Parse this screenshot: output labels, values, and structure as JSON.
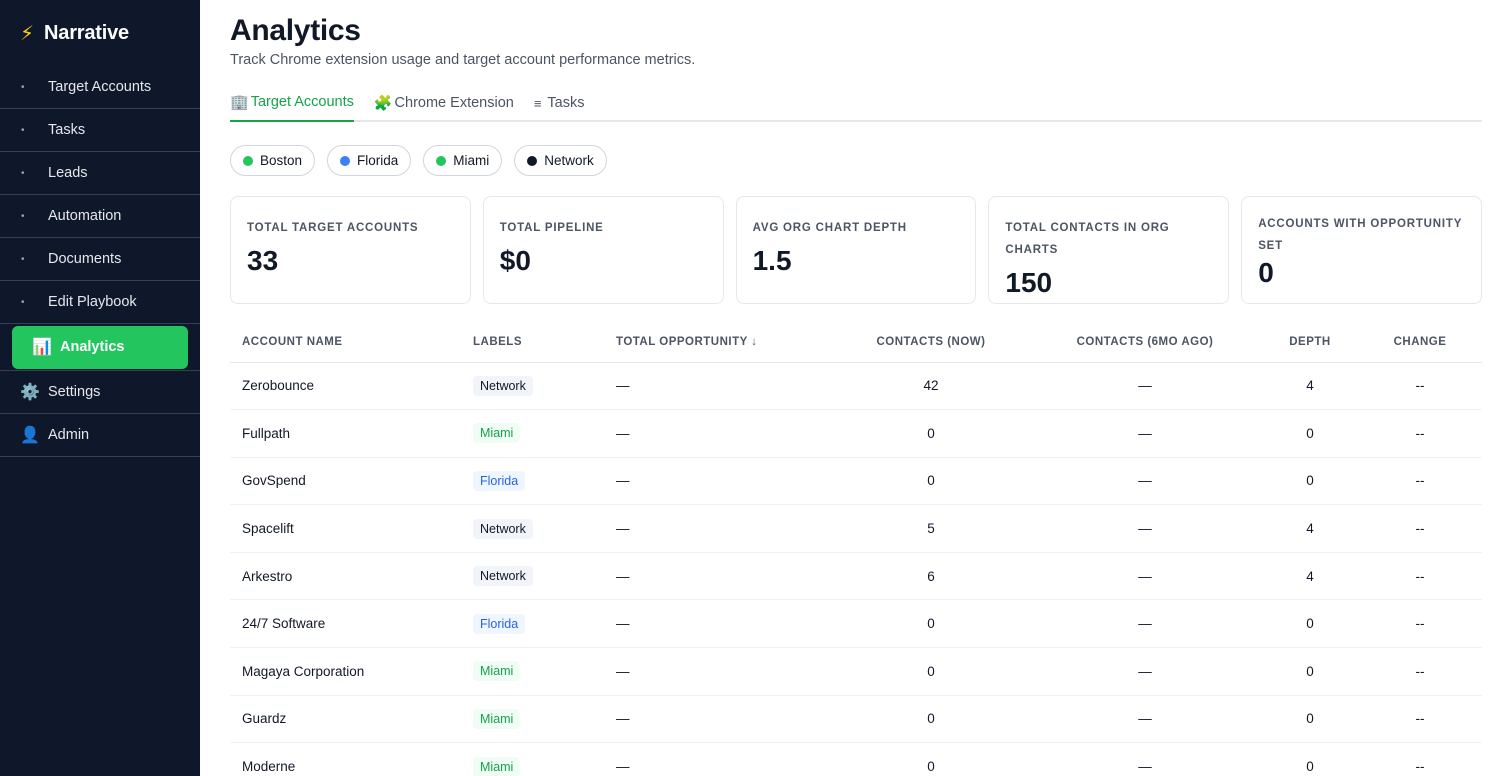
{
  "brand": {
    "icon": "⚡",
    "name": "Narrative"
  },
  "sidebar": {
    "items": [
      {
        "label": "Target Accounts",
        "marker": "•"
      },
      {
        "label": "Tasks",
        "marker": "•"
      },
      {
        "label": "Leads",
        "marker": "•"
      },
      {
        "label": "Automation",
        "marker": "•"
      },
      {
        "label": "Documents",
        "marker": "•"
      },
      {
        "label": "Edit Playbook",
        "marker": "•"
      },
      {
        "label": "Analytics",
        "marker": "📊",
        "active": true
      },
      {
        "label": "Settings",
        "marker": "⚙️"
      },
      {
        "label": "Admin",
        "marker": "👤"
      }
    ]
  },
  "header": {
    "title": "Analytics",
    "subtitle": "Track Chrome extension usage and target account performance metrics."
  },
  "tabs": [
    {
      "icon": "🏢",
      "label": "Target Accounts",
      "active": true
    },
    {
      "icon": "🧩",
      "label": "Chrome Extension"
    },
    {
      "icon": "≡",
      "label": "Tasks"
    }
  ],
  "filters": [
    {
      "label": "Boston",
      "color": "#22c55e"
    },
    {
      "label": "Florida",
      "color": "#3b82f6"
    },
    {
      "label": "Miami",
      "color": "#22c55e"
    },
    {
      "label": "Network",
      "color": "#111827"
    }
  ],
  "stats": [
    {
      "label": "Total Target Accounts",
      "value": "33"
    },
    {
      "label": "Total Pipeline",
      "value": "$0"
    },
    {
      "label": "Avg Org Chart Depth",
      "value": "1.5"
    },
    {
      "label": "Total Contacts in Org Charts",
      "value": "150"
    },
    {
      "label": "Accounts with Opportunity Set",
      "value": "0"
    }
  ],
  "table": {
    "columns": [
      "Account Name",
      "Labels",
      "Total Opportunity ↓",
      "Contacts (Now)",
      "Contacts (6mo Ago)",
      "Depth",
      "Change"
    ],
    "rows": [
      {
        "name": "Zerobounce",
        "label": "Network",
        "opportunity": "—",
        "contacts_now": "42",
        "contacts_6mo": "—",
        "depth": "4",
        "change": "--"
      },
      {
        "name": "Fullpath",
        "label": "Miami",
        "opportunity": "—",
        "contacts_now": "0",
        "contacts_6mo": "—",
        "depth": "0",
        "change": "--"
      },
      {
        "name": "GovSpend",
        "label": "Florida",
        "opportunity": "—",
        "contacts_now": "0",
        "contacts_6mo": "—",
        "depth": "0",
        "change": "--"
      },
      {
        "name": "Spacelift",
        "label": "Network",
        "opportunity": "—",
        "contacts_now": "5",
        "contacts_6mo": "—",
        "depth": "4",
        "change": "--"
      },
      {
        "name": "Arkestro",
        "label": "Network",
        "opportunity": "—",
        "contacts_now": "6",
        "contacts_6mo": "—",
        "depth": "4",
        "change": "--"
      },
      {
        "name": "24/7 Software",
        "label": "Florida",
        "opportunity": "—",
        "contacts_now": "0",
        "contacts_6mo": "—",
        "depth": "0",
        "change": "--"
      },
      {
        "name": "Magaya Corporation",
        "label": "Miami",
        "opportunity": "—",
        "contacts_now": "0",
        "contacts_6mo": "—",
        "depth": "0",
        "change": "--"
      },
      {
        "name": "Guardz",
        "label": "Miami",
        "opportunity": "—",
        "contacts_now": "0",
        "contacts_6mo": "—",
        "depth": "0",
        "change": "--"
      },
      {
        "name": "Moderne",
        "label": "Miami",
        "opportunity": "—",
        "contacts_now": "0",
        "contacts_6mo": "—",
        "depth": "0",
        "change": "--"
      }
    ]
  }
}
